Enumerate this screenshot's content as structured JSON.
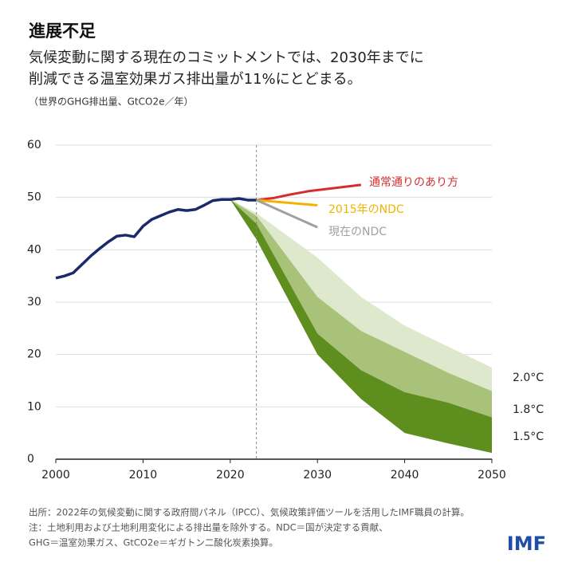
{
  "header": {
    "title": "進展不足",
    "subtitle_lines": [
      "気候変動に関する現在のコミットメントでは、2030年までに",
      "削減できる温室効果ガス排出量が11%にとどまる。"
    ],
    "unit": "（世界のGHG排出量、GtCO2e／年）"
  },
  "chart_data": {
    "type": "line",
    "xlim": [
      2000,
      2050
    ],
    "xticks": [
      2000,
      2010,
      2020,
      2030,
      2040,
      2050
    ],
    "ylim": [
      0,
      60
    ],
    "yticks": [
      0,
      10,
      20,
      30,
      40,
      50,
      60
    ],
    "grid": true,
    "divider_x": 2023,
    "series": [
      {
        "color": "#1b2a6b",
        "x": [
          2000,
          2001,
          2002,
          2003,
          2004,
          2005,
          2006,
          2007,
          2008,
          2009,
          2010,
          2011,
          2012,
          2013,
          2014,
          2015,
          2016,
          2017,
          2018,
          2019,
          2020,
          2021,
          2022,
          2023
        ],
        "values": [
          34.6,
          35,
          35.6,
          37.2,
          38.8,
          40.2,
          41.5,
          42.6,
          42.8,
          42.5,
          44.5,
          45.8,
          46.5,
          47.2,
          47.7,
          47.5,
          47.7,
          48.5,
          49.4,
          49.6,
          49.6,
          49.8,
          49.5,
          49.5
        ]
      },
      {
        "name": "通常通りのあり方",
        "color": "#d32f2f",
        "x": [
          2023,
          2025,
          2027,
          2029,
          2031,
          2033,
          2035
        ],
        "values": [
          49.5,
          49.9,
          50.6,
          51.2,
          51.6,
          52.0,
          52.4
        ]
      },
      {
        "name": "2015年のNDC",
        "color": "#f0b400",
        "x": [
          2023,
          2030
        ],
        "values": [
          49.5,
          48.5
        ]
      },
      {
        "name": "現在のNDC",
        "color": "#a0a0a0",
        "x": [
          2023,
          2030
        ],
        "values": [
          49.5,
          44.3
        ]
      }
    ],
    "bands": [
      {
        "name": "2.0°C",
        "color": "#dde8cc",
        "x": [
          2020,
          2023,
          2030,
          2035,
          2040,
          2045,
          2050
        ],
        "lower": [
          49.6,
          46.5,
          31,
          24.5,
          20.5,
          16.5,
          13
        ],
        "upper": [
          49.6,
          47,
          38.5,
          31,
          25.5,
          21.5,
          17.5
        ]
      },
      {
        "name": "1.8°C",
        "color": "#a8c27a",
        "x": [
          2020,
          2023,
          2030,
          2035,
          2040,
          2045,
          2050
        ],
        "lower": [
          49.6,
          45,
          24,
          17,
          12.8,
          10.8,
          8
        ],
        "upper": [
          49.6,
          46.5,
          31,
          24.5,
          20.5,
          16.5,
          13
        ]
      },
      {
        "name": "1.5°C",
        "color": "#5e8f1e",
        "x": [
          2020,
          2023,
          2030,
          2035,
          2040,
          2045,
          2050
        ],
        "lower": [
          49.6,
          42,
          20,
          11.5,
          5,
          3,
          1.2
        ],
        "upper": [
          49.6,
          45,
          24,
          17,
          12.8,
          10.8,
          8
        ]
      }
    ]
  },
  "footer": {
    "notes": [
      "出所：2022年の気候変動に関する政府間パネル（IPCC）、気候政策評価ツールを活用したIMF職員の計算。",
      "注：土地利用および土地利用変化による排出量を除外する。NDC＝国が決定する貢献、",
      "GHG＝温室効果ガス、GtCO2e＝ギガトン二酸化炭素換算。"
    ],
    "logo": "IMF"
  }
}
